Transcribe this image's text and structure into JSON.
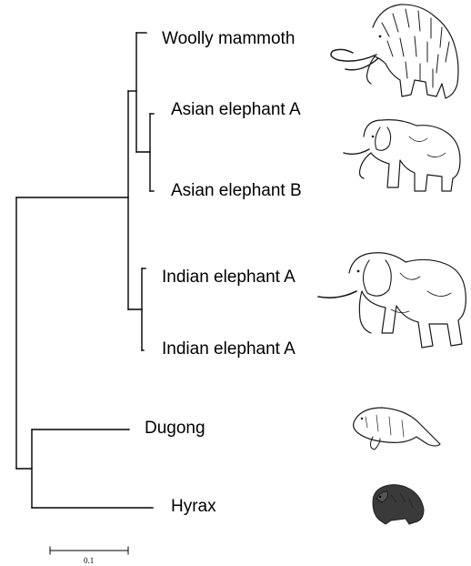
{
  "tree": {
    "taxa": [
      {
        "label": "Woolly mammoth",
        "image": "woolly-mammoth-drawing"
      },
      {
        "label": "Asian elephant A",
        "image": "asian-elephant-drawing"
      },
      {
        "label": "Asian elephant B",
        "image": "asian-elephant-drawing"
      },
      {
        "label": "Indian elephant A",
        "image": "indian-elephant-drawing"
      },
      {
        "label": "Indian elephant A",
        "image": "indian-elephant-drawing"
      },
      {
        "label": "Dugong",
        "image": "dugong-drawing"
      },
      {
        "label": "Hyrax",
        "image": "hyrax-drawing"
      }
    ],
    "scale_bar": {
      "label": "0.1",
      "value": 0.1
    }
  }
}
